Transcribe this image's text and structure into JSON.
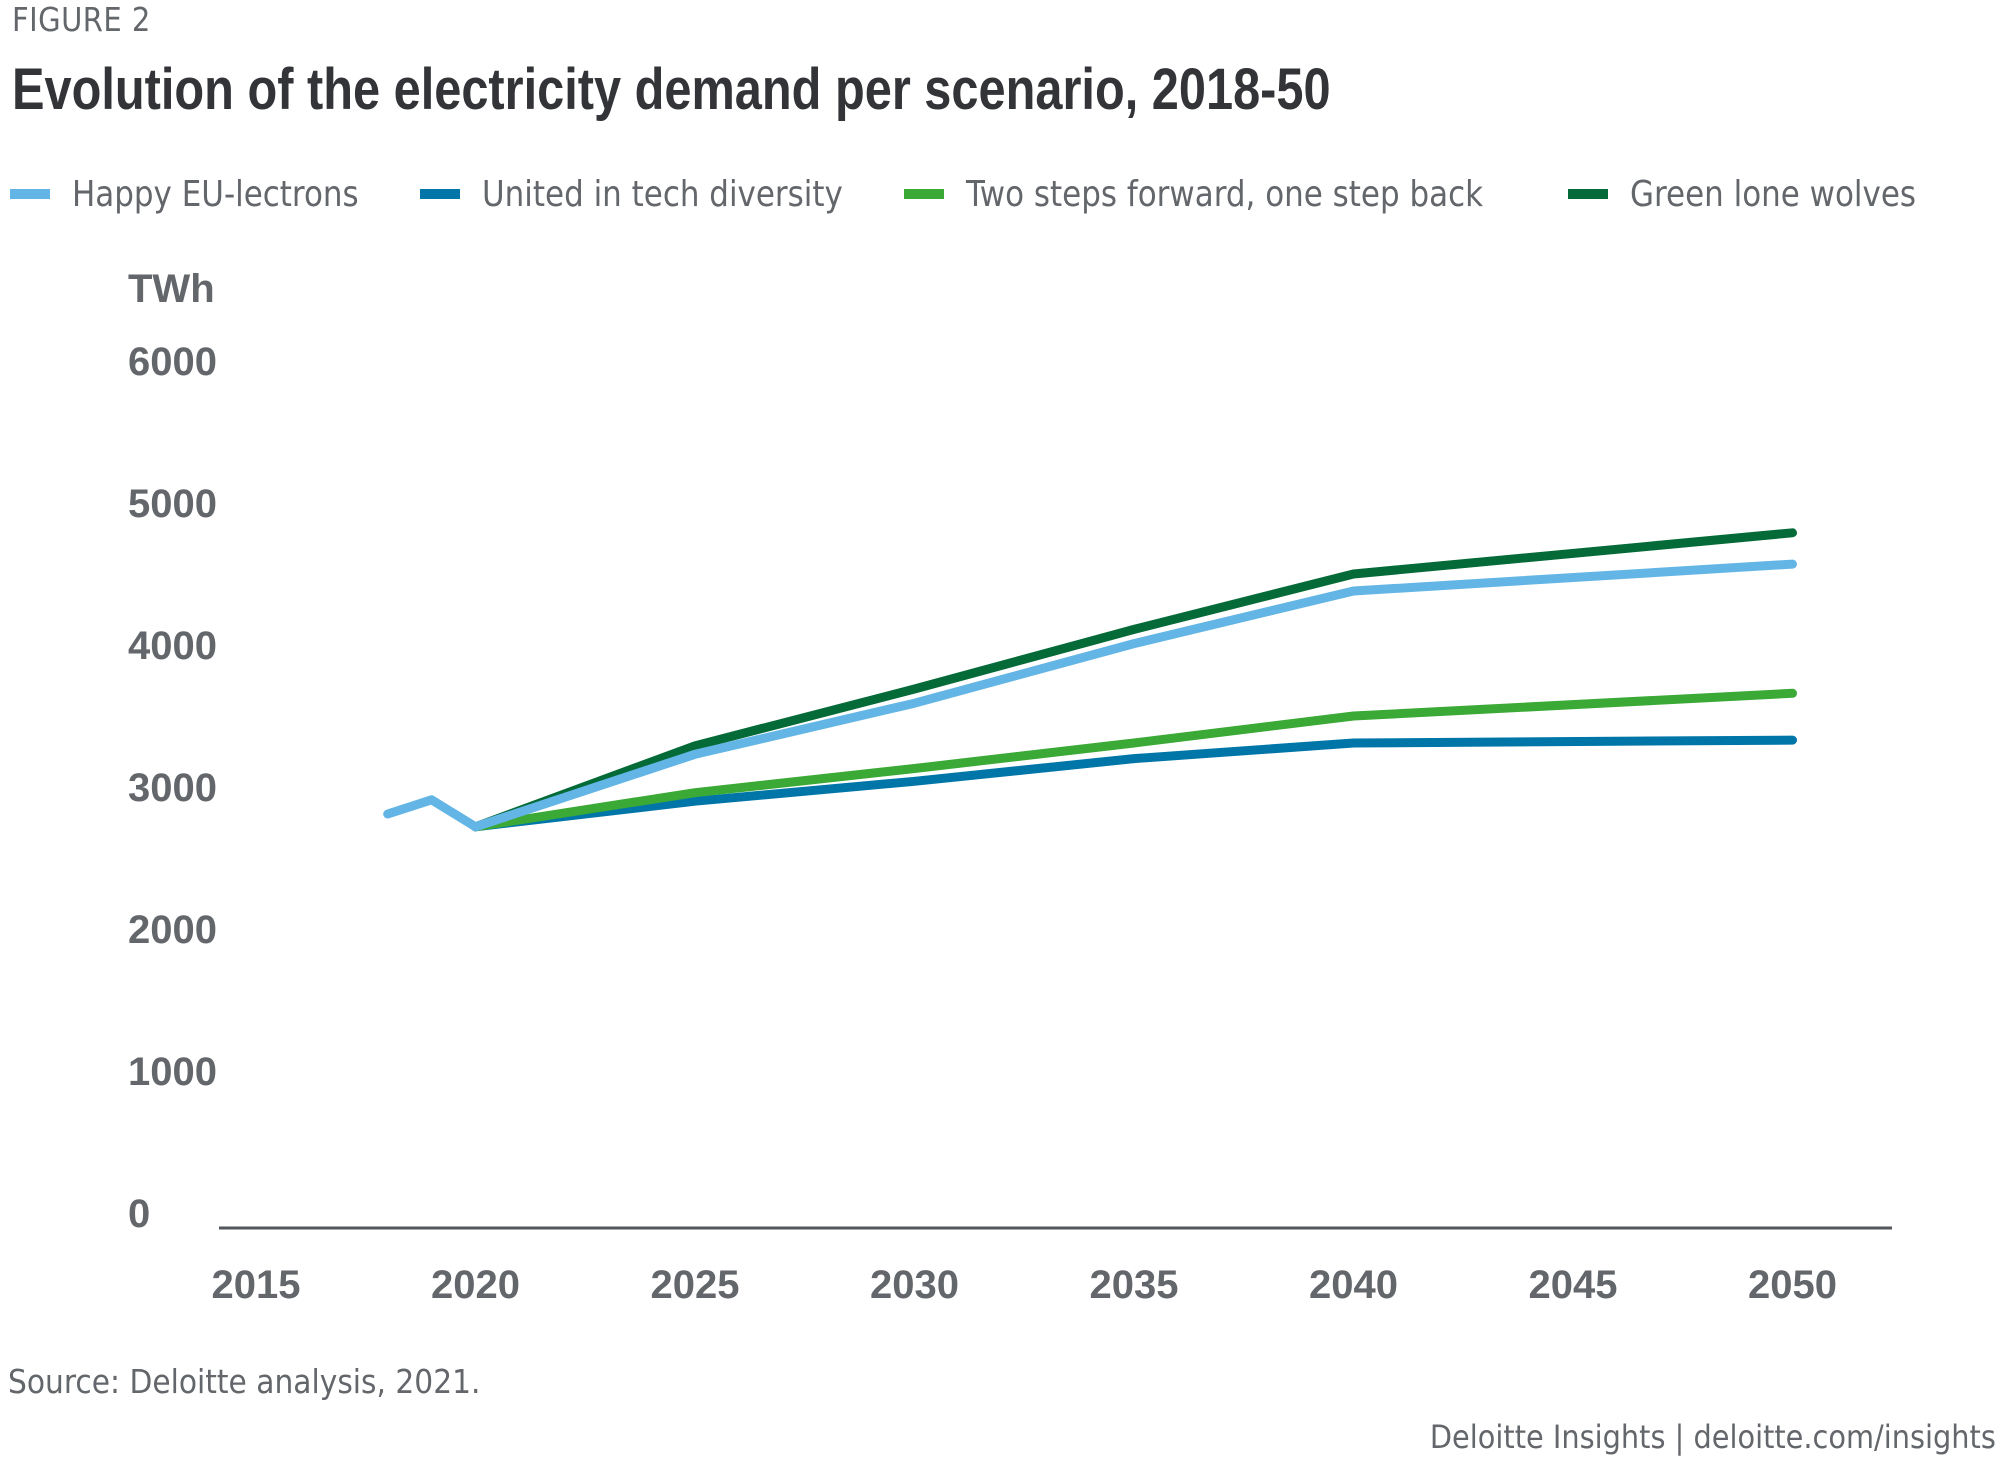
{
  "header": {
    "figure_label": "FIGURE 2",
    "title": "Evolution of the electricity demand per scenario, 2018-50"
  },
  "legend": [
    {
      "label": "Happy EU-lectrons",
      "color": "#62B5E5"
    },
    {
      "label": "United in tech diversity",
      "color": "#0076A8"
    },
    {
      "label": "Two steps forward, one step back",
      "color": "#3AA935"
    },
    {
      "label": "Green lone wolves",
      "color": "#046A38"
    }
  ],
  "footer": {
    "source": "Source: Deloitte analysis, 2021.",
    "brand": "Deloitte Insights | deloitte.com/insights"
  },
  "chart_data": {
    "type": "line",
    "title": "Evolution of the electricity demand per scenario, 2018-50",
    "xlabel": "",
    "ylabel": "TWh",
    "xlim": [
      2015,
      2050
    ],
    "ylim": [
      0,
      6000
    ],
    "x_ticks": [
      2015,
      2020,
      2025,
      2030,
      2035,
      2040,
      2045,
      2050
    ],
    "y_ticks": [
      0,
      1000,
      2000,
      3000,
      4000,
      5000,
      6000
    ],
    "grid": false,
    "legend_position": "top",
    "series": [
      {
        "name": "Happy EU-lectrons",
        "color": "#62B5E5",
        "x": [
          2018,
          2019,
          2020,
          2025,
          2030,
          2035,
          2040,
          2050
        ],
        "values": [
          2810,
          2910,
          2720,
          3230,
          3590,
          4010,
          4380,
          4570
        ]
      },
      {
        "name": "United in tech diversity",
        "color": "#0076A8",
        "x": [
          2020,
          2025,
          2030,
          2035,
          2040,
          2050
        ],
        "values": [
          2720,
          2900,
          3040,
          3200,
          3310,
          3330
        ]
      },
      {
        "name": "Two steps forward, one step back",
        "color": "#3AA935",
        "x": [
          2020,
          2025,
          2030,
          2035,
          2040,
          2050
        ],
        "values": [
          2720,
          2960,
          3130,
          3310,
          3500,
          3660
        ]
      },
      {
        "name": "Green lone wolves",
        "color": "#046A38",
        "x": [
          2020,
          2025,
          2030,
          2035,
          2040,
          2050
        ],
        "values": [
          2720,
          3290,
          3690,
          4110,
          4500,
          4790
        ]
      }
    ]
  }
}
